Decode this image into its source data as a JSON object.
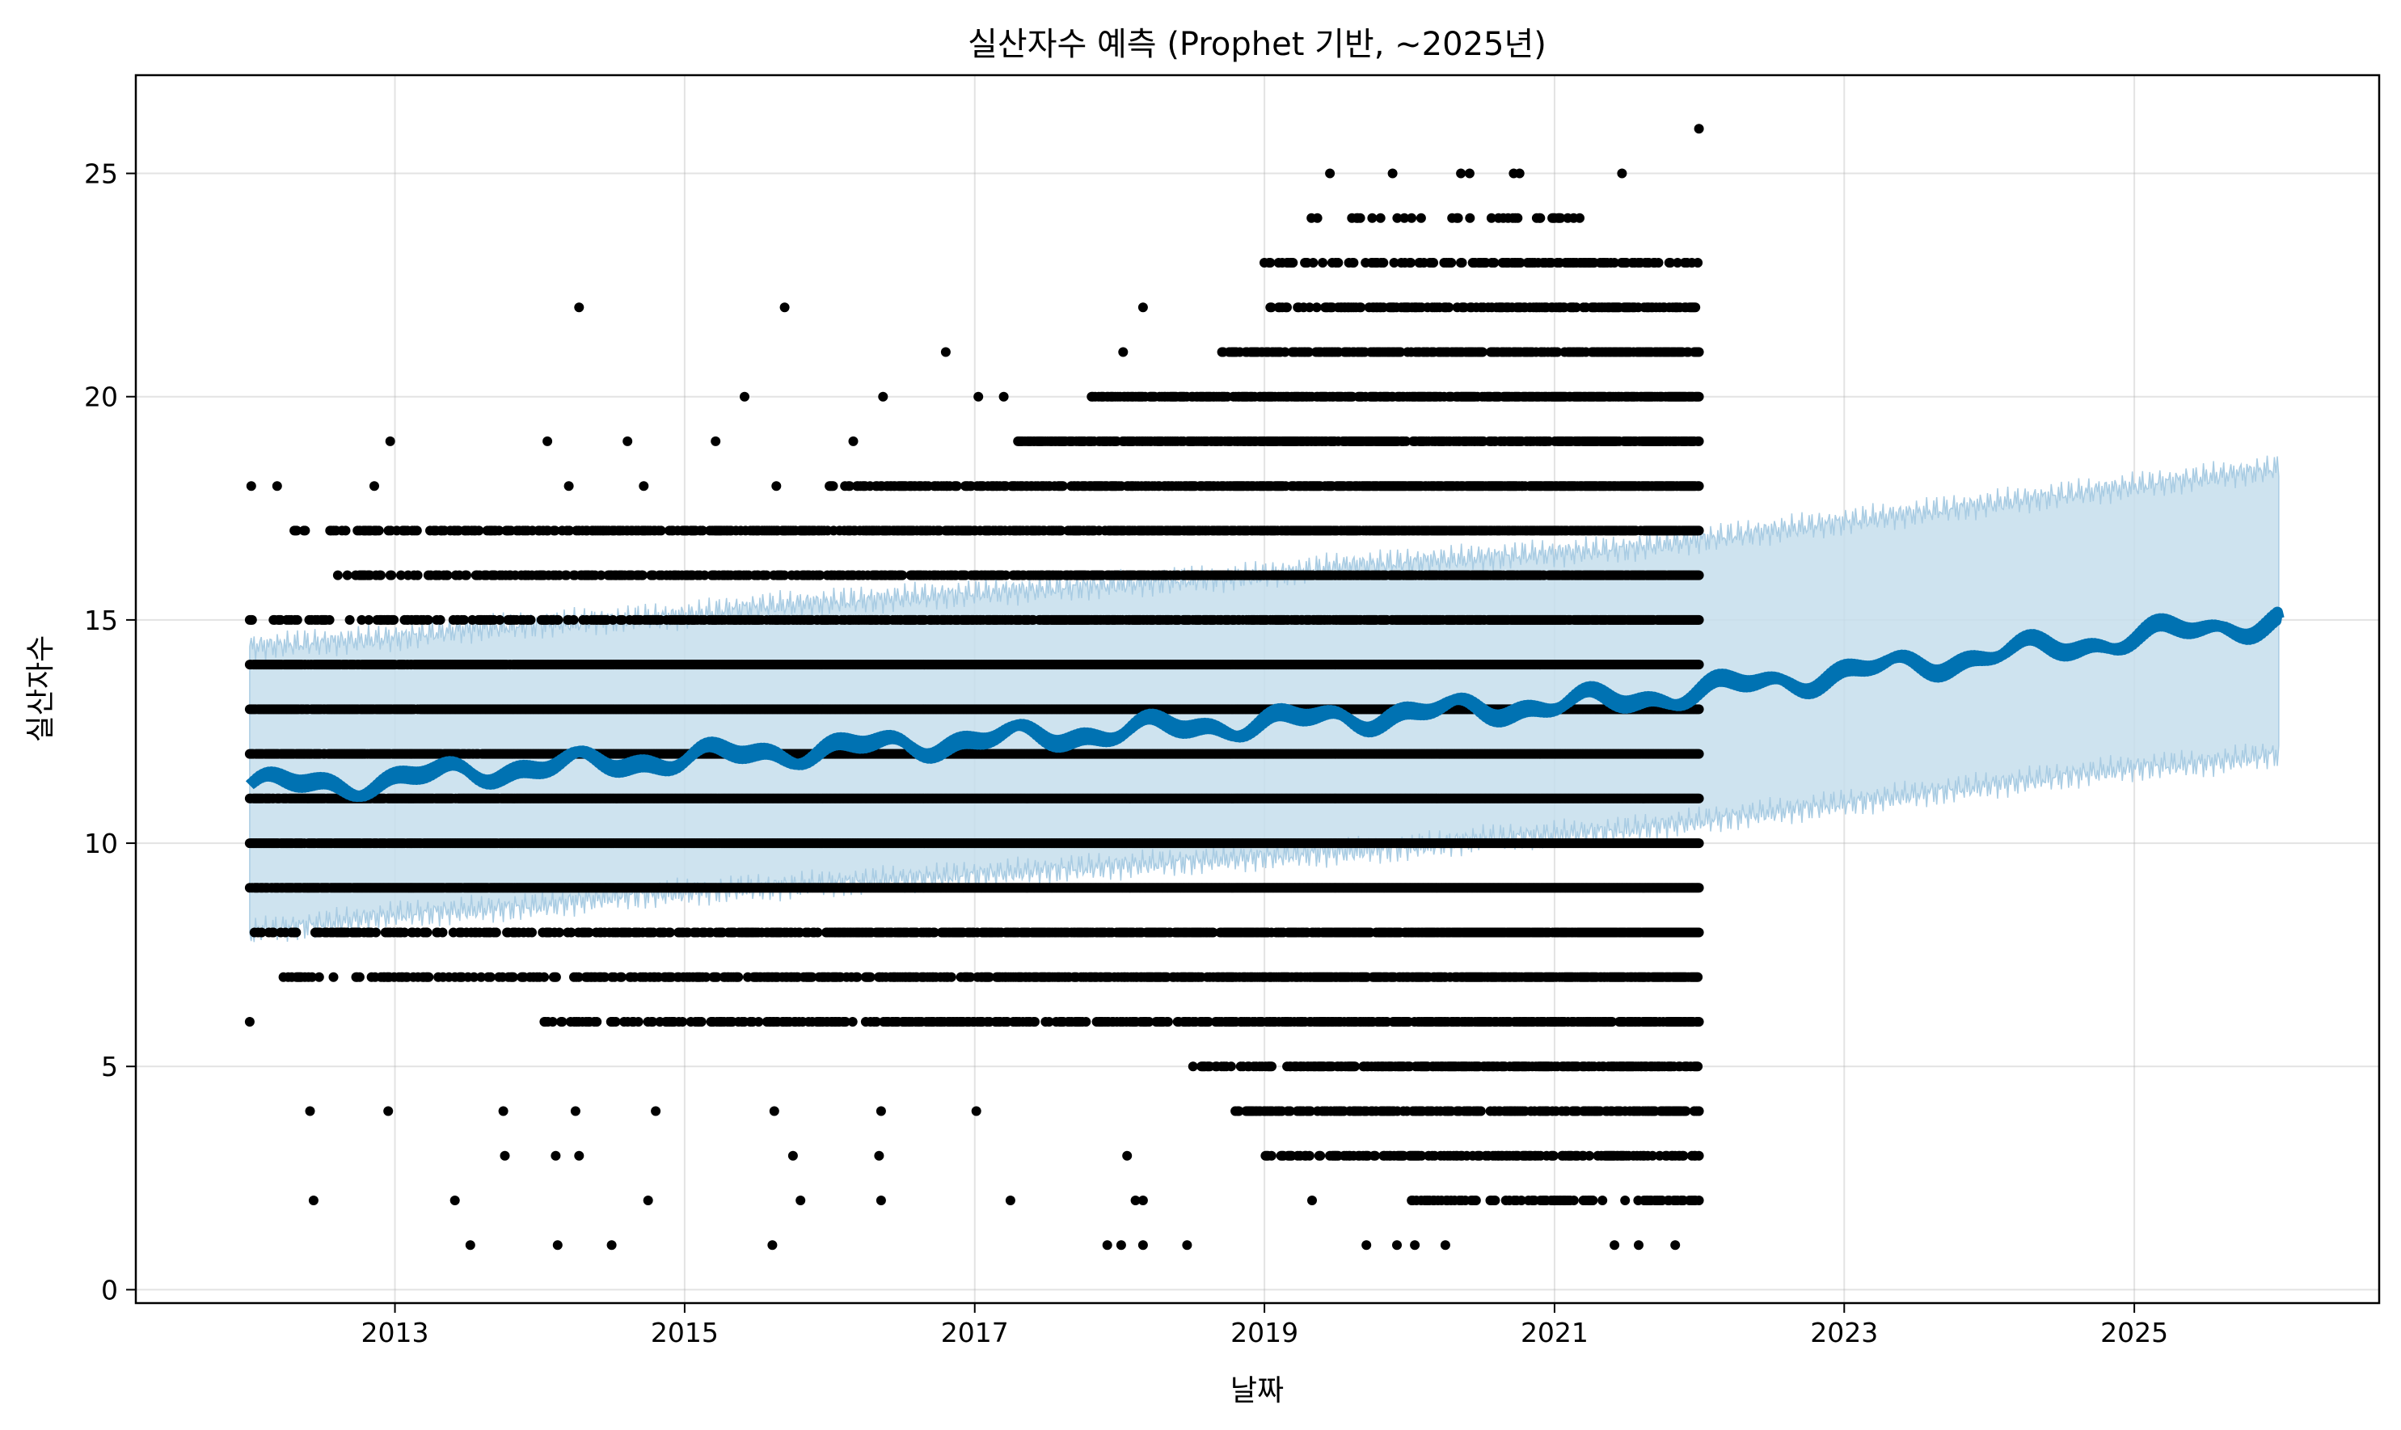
{
  "chart_data": {
    "type": "scatter",
    "title": "실산자수 예측 (Prophet 기반, ~2025년)",
    "xlabel": "날짜",
    "ylabel": "실산자수",
    "x_range": [
      "2011-03-20",
      "2026-09-10"
    ],
    "ylim": [
      -0.3,
      27.2
    ],
    "x_ticks": [
      "2013",
      "2015",
      "2017",
      "2019",
      "2021",
      "2023",
      "2025"
    ],
    "y_ticks": [
      0,
      5,
      10,
      15,
      20,
      25
    ],
    "grid": true,
    "colors": {
      "observed": "#000000",
      "forecast": "#0072B2",
      "interval": "#C6DEEC",
      "interval_edge": "#A9CCE3"
    },
    "observed": {
      "x_start": "2012-01-01",
      "x_end": "2021-12-31",
      "y_min": 1,
      "y_max": 26,
      "level_points": [
        {
          "y": 25,
          "x": [
            "2019-06-15",
            "2019-11-20",
            "2020-05-10",
            "2020-06-01",
            "2020-09-20",
            "2020-10-05",
            "2021-06-20"
          ]
        },
        {
          "y": 26,
          "x": [
            "2021-12-31"
          ]
        },
        {
          "y": 22,
          "x": [
            "2014-04-10",
            "2015-09-10",
            "2018-03-01"
          ]
        },
        {
          "y": 21,
          "x": [
            "2016-10-20",
            "2018-01-10"
          ]
        },
        {
          "y": 20,
          "x": [
            "2015-06-01",
            "2016-05-15",
            "2017-01-10",
            "2017-03-15"
          ]
        },
        {
          "y": 19,
          "x": [
            "2012-12-20",
            "2014-01-20",
            "2014-08-10",
            "2015-03-20",
            "2016-03-01"
          ]
        },
        {
          "y": 18,
          "x": [
            "2012-01-05",
            "2012-03-10",
            "2012-11-10",
            "2014-03-15",
            "2014-09-20",
            "2015-08-20"
          ]
        },
        {
          "y": 6,
          "x": [
            "2012-01-01"
          ]
        },
        {
          "y": 4,
          "x": [
            "2012-06-01",
            "2012-12-15",
            "2013-10-01",
            "2014-04-01",
            "2014-10-20",
            "2015-08-15",
            "2016-05-10",
            "2017-01-05"
          ]
        },
        {
          "y": 3,
          "x": [
            "2013-10-05",
            "2014-02-10",
            "2014-04-10",
            "2015-10-01",
            "2016-05-05",
            "2018-01-20"
          ]
        },
        {
          "y": 2,
          "x": [
            "2012-06-10",
            "2013-06-01",
            "2014-10-01",
            "2015-10-20",
            "2016-05-10",
            "2017-04-01",
            "2018-02-10",
            "2018-03-01",
            "2019-05-01"
          ]
        },
        {
          "y": 1,
          "x": [
            "2013-07-10",
            "2014-02-15",
            "2014-07-01",
            "2015-08-10",
            "2017-12-01",
            "2018-01-05",
            "2018-03-01",
            "2018-06-20",
            "2019-09-15",
            "2019-12-01",
            "2020-01-15",
            "2020-04-01",
            "2021-06-01",
            "2021-08-01",
            "2021-11-01"
          ]
        }
      ]
    },
    "forecast": {
      "x": [
        "2012-01-01",
        "2012-07-01",
        "2013-01-01",
        "2013-07-01",
        "2014-01-01",
        "2014-07-01",
        "2015-01-01",
        "2015-07-01",
        "2016-01-01",
        "2016-07-01",
        "2017-01-01",
        "2017-07-01",
        "2018-01-01",
        "2018-07-01",
        "2019-01-01",
        "2019-07-01",
        "2020-01-01",
        "2020-07-01",
        "2021-01-01",
        "2021-07-01",
        "2022-01-01",
        "2022-07-01",
        "2023-01-01",
        "2023-07-01",
        "2024-01-01",
        "2024-07-01",
        "2025-01-01",
        "2025-07-01",
        "2025-12-31"
      ],
      "yhat": [
        11.3,
        11.3,
        11.4,
        11.6,
        11.7,
        11.8,
        11.9,
        12.0,
        12.1,
        12.2,
        12.3,
        12.4,
        12.5,
        12.6,
        12.7,
        12.8,
        12.9,
        13.0,
        13.1,
        13.2,
        13.4,
        13.6,
        13.8,
        14.0,
        14.2,
        14.4,
        14.6,
        14.8,
        15.0
      ],
      "yhat_lower": [
        8.0,
        8.2,
        8.4,
        8.5,
        8.6,
        8.8,
        8.9,
        9.0,
        9.1,
        9.2,
        9.3,
        9.4,
        9.5,
        9.6,
        9.7,
        9.8,
        9.9,
        10.1,
        10.2,
        10.3,
        10.5,
        10.7,
        10.9,
        11.1,
        11.3,
        11.5,
        11.7,
        11.8,
        12.0
      ],
      "yhat_upper": [
        14.4,
        14.5,
        14.6,
        14.8,
        14.9,
        15.0,
        15.1,
        15.3,
        15.4,
        15.5,
        15.6,
        15.7,
        15.8,
        15.9,
        16.0,
        16.2,
        16.3,
        16.4,
        16.5,
        16.6,
        16.8,
        17.0,
        17.2,
        17.4,
        17.6,
        17.8,
        18.0,
        18.2,
        18.4
      ]
    }
  }
}
